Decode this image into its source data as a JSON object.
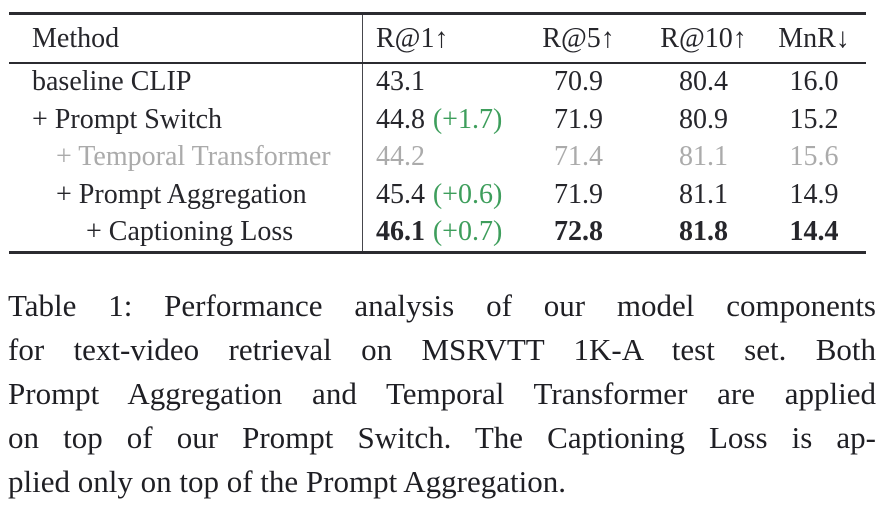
{
  "colors": {
    "text": "#26262b",
    "green_delta": "#3e9e5c",
    "muted_gray": "#ababab",
    "rule": "#2b2b30"
  },
  "table": {
    "columns": [
      {
        "key": "method",
        "label": "Method"
      },
      {
        "key": "r1",
        "label": "R@1↑"
      },
      {
        "key": "r5",
        "label": "R@5↑"
      },
      {
        "key": "r10",
        "label": "R@10↑"
      },
      {
        "key": "mnr",
        "label": "MnR↓"
      }
    ],
    "rows": [
      {
        "method": "baseline CLIP",
        "indent": 0,
        "muted": false,
        "bold": false,
        "r1": "43.1",
        "r1_delta": "",
        "r5": "70.9",
        "r10": "80.4",
        "mnr": "16.0"
      },
      {
        "method": "+ Prompt Switch",
        "indent": 0,
        "muted": false,
        "bold": false,
        "r1": "44.8",
        "r1_delta": "(+1.7)",
        "r5": "71.9",
        "r10": "80.9",
        "mnr": "15.2"
      },
      {
        "method": "+ Temporal Transformer",
        "indent": 1,
        "muted": true,
        "bold": false,
        "r1": "44.2",
        "r1_delta": "",
        "r5": "71.4",
        "r10": "81.1",
        "mnr": "15.6"
      },
      {
        "method": "+ Prompt Aggregation",
        "indent": 1,
        "muted": false,
        "bold": false,
        "r1": "45.4",
        "r1_delta": "(+0.6)",
        "r5": "71.9",
        "r10": "81.1",
        "mnr": "14.9"
      },
      {
        "method": "+ Captioning Loss",
        "indent": 2,
        "muted": false,
        "bold": true,
        "r1": "46.1",
        "r1_delta": "(+0.7)",
        "r5": "72.8",
        "r10": "81.8",
        "mnr": "14.4"
      }
    ]
  },
  "caption": {
    "lines": [
      "Table 1: Performance analysis of our model components",
      "for text-video retrieval on MSRVTT 1K-A test set. Both",
      "Prompt Aggregation and Temporal Transformer are applied",
      "on top of our Prompt Switch. The Captioning Loss is ap-",
      "plied only on top of the Prompt Aggregation."
    ]
  }
}
